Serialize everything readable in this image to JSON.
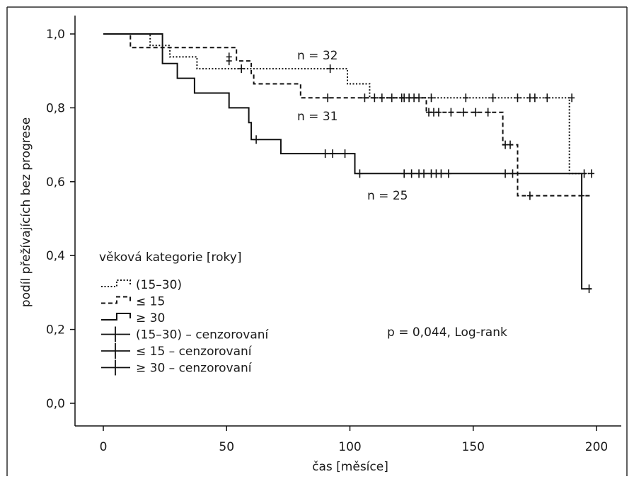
{
  "chart_data": {
    "type": "line",
    "subtype": "kaplan-meier step",
    "xlabel": "čas [měsíce]",
    "ylabel": "podíl přežívajících bez progrese",
    "xlim": [
      0,
      200
    ],
    "ylim": [
      0,
      1
    ],
    "x_ticks": [
      "0",
      "50",
      "100",
      "150",
      "200"
    ],
    "y_ticks": [
      "0,0",
      "0,2",
      "0,4",
      "0,6",
      "0,8",
      "1,0"
    ],
    "grid": false,
    "legend_title": "věková kategorie [roky]",
    "legend": [
      {
        "label": "(15–30)",
        "style": "dotted"
      },
      {
        "label": "≤ 15",
        "style": "dashed"
      },
      {
        "label": "≥ 30",
        "style": "solid"
      },
      {
        "label": "(15–30) – cenzorovaní",
        "style": "cross"
      },
      {
        "label": "≤ 15 – cenzorovaní",
        "style": "cross"
      },
      {
        "label": "≥ 30 – cenzorovaní",
        "style": "cross"
      }
    ],
    "legend_placement": "lower-left",
    "annotations": {
      "n_15_30": "n = 32",
      "n_le15": "n = 31",
      "n_ge30": "n = 25",
      "test": "p = 0,044, Log-rank"
    },
    "series": [
      {
        "group": "15-30",
        "style": "dotted",
        "steps": [
          [
            0,
            1.0
          ],
          [
            19,
            0.969
          ],
          [
            27,
            0.938
          ],
          [
            38,
            0.906
          ],
          [
            96,
            0.906
          ],
          [
            99,
            0.865
          ],
          [
            108,
            0.827
          ],
          [
            189,
            0.827
          ],
          [
            189,
            0.622
          ],
          [
            199,
            0.622
          ]
        ],
        "censored": [
          [
            51,
            0.938
          ],
          [
            56,
            0.906
          ],
          [
            92,
            0.906
          ],
          [
            106,
            0.827
          ],
          [
            121,
            0.827
          ],
          [
            133,
            0.827
          ],
          [
            147,
            0.827
          ],
          [
            158,
            0.827
          ],
          [
            168,
            0.827
          ],
          [
            173,
            0.827
          ],
          [
            175,
            0.827
          ],
          [
            180,
            0.827
          ],
          [
            190,
            0.827
          ],
          [
            195,
            0.622
          ]
        ]
      },
      {
        "group": "le15",
        "style": "dashed",
        "steps": [
          [
            0,
            1.0
          ],
          [
            11,
            0.963
          ],
          [
            53,
            0.963
          ],
          [
            54,
            0.927
          ],
          [
            60,
            0.89
          ],
          [
            61,
            0.865
          ],
          [
            80,
            0.827
          ],
          [
            130,
            0.827
          ],
          [
            131,
            0.788
          ],
          [
            161,
            0.788
          ],
          [
            162,
            0.7
          ],
          [
            167,
            0.7
          ],
          [
            168,
            0.562
          ],
          [
            198,
            0.562
          ]
        ],
        "censored": [
          [
            51,
            0.927
          ],
          [
            91,
            0.827
          ],
          [
            110,
            0.827
          ],
          [
            113,
            0.827
          ],
          [
            117,
            0.827
          ],
          [
            122,
            0.827
          ],
          [
            124,
            0.827
          ],
          [
            126,
            0.827
          ],
          [
            128,
            0.827
          ],
          [
            132,
            0.788
          ],
          [
            134,
            0.788
          ],
          [
            136,
            0.788
          ],
          [
            141,
            0.788
          ],
          [
            146,
            0.788
          ],
          [
            151,
            0.788
          ],
          [
            156,
            0.788
          ],
          [
            163,
            0.7
          ],
          [
            165,
            0.7
          ],
          [
            173,
            0.562
          ],
          [
            194,
            0.562
          ],
          [
            198,
            0.622
          ]
        ]
      },
      {
        "group": "ge30",
        "style": "solid",
        "steps": [
          [
            0,
            1.0
          ],
          [
            24,
            1.0
          ],
          [
            24,
            0.92
          ],
          [
            30,
            0.88
          ],
          [
            37,
            0.84
          ],
          [
            51,
            0.8
          ],
          [
            59,
            0.76
          ],
          [
            60,
            0.714
          ],
          [
            72,
            0.676
          ],
          [
            102,
            0.676
          ],
          [
            102,
            0.622
          ],
          [
            194,
            0.622
          ],
          [
            194,
            0.31
          ],
          [
            198,
            0.31
          ]
        ],
        "censored": [
          [
            62,
            0.714
          ],
          [
            90,
            0.676
          ],
          [
            93,
            0.676
          ],
          [
            98,
            0.676
          ],
          [
            104,
            0.622
          ],
          [
            122,
            0.622
          ],
          [
            125,
            0.622
          ],
          [
            128,
            0.622
          ],
          [
            130,
            0.622
          ],
          [
            133,
            0.622
          ],
          [
            135,
            0.622
          ],
          [
            137,
            0.622
          ],
          [
            140,
            0.622
          ],
          [
            163,
            0.622
          ],
          [
            166,
            0.622
          ],
          [
            197,
            0.31
          ]
        ]
      }
    ]
  }
}
